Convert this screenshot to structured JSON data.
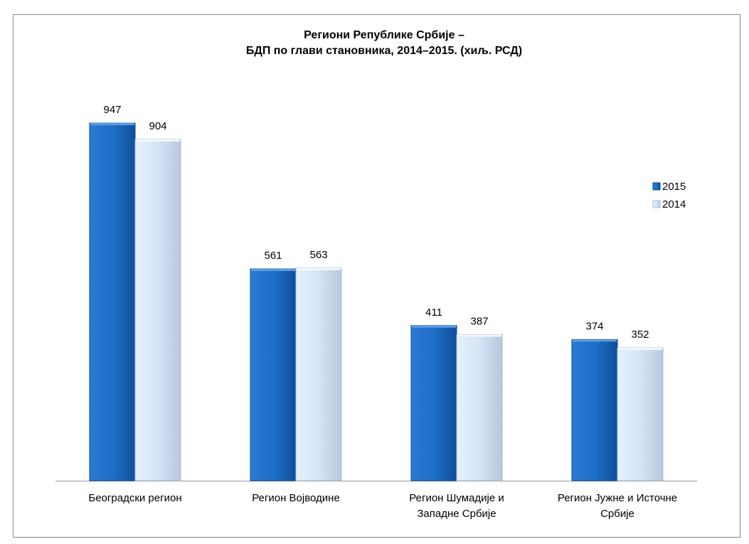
{
  "chart_data": {
    "type": "bar",
    "title": "Региони Републике Србије –\nБДП по глави становника, 2014–2015. (хиљ. РСД)",
    "categories": [
      "Београдски регион",
      "Регион Војводине",
      "Регион Шумадије и\nЗападне Србије",
      "Регион Јужне и Источне\nСрбије"
    ],
    "series": [
      {
        "name": "2015",
        "color": "#1f6fc8",
        "values": [
          947,
          561,
          411,
          374
        ]
      },
      {
        "name": "2014",
        "color": "#d4e4f7",
        "values": [
          904,
          563,
          387,
          352
        ]
      }
    ],
    "legend": "right"
  }
}
